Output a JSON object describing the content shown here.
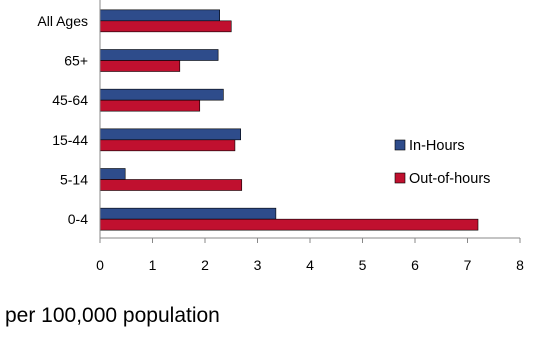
{
  "chart_data": {
    "type": "bar",
    "orientation": "horizontal",
    "title": "",
    "xlabel": "per 100,000 population",
    "ylabel": "",
    "categories": [
      "All Ages",
      "65+",
      "45-64",
      "15-44",
      "5-14",
      "0-4"
    ],
    "series": [
      {
        "name": "In-Hours",
        "color": "#2E4C8B",
        "values": [
          2.28,
          2.25,
          2.35,
          2.68,
          0.48,
          3.35
        ]
      },
      {
        "name": "Out-of-hours",
        "color": "#C0102F",
        "values": [
          2.5,
          1.52,
          1.9,
          2.57,
          2.7,
          7.2
        ]
      }
    ],
    "xlim": [
      0,
      8
    ],
    "xticks": [
      "0",
      "1",
      "2",
      "3",
      "4",
      "5",
      "6",
      "7",
      "8"
    ],
    "grid": false,
    "legend_position": "right"
  }
}
